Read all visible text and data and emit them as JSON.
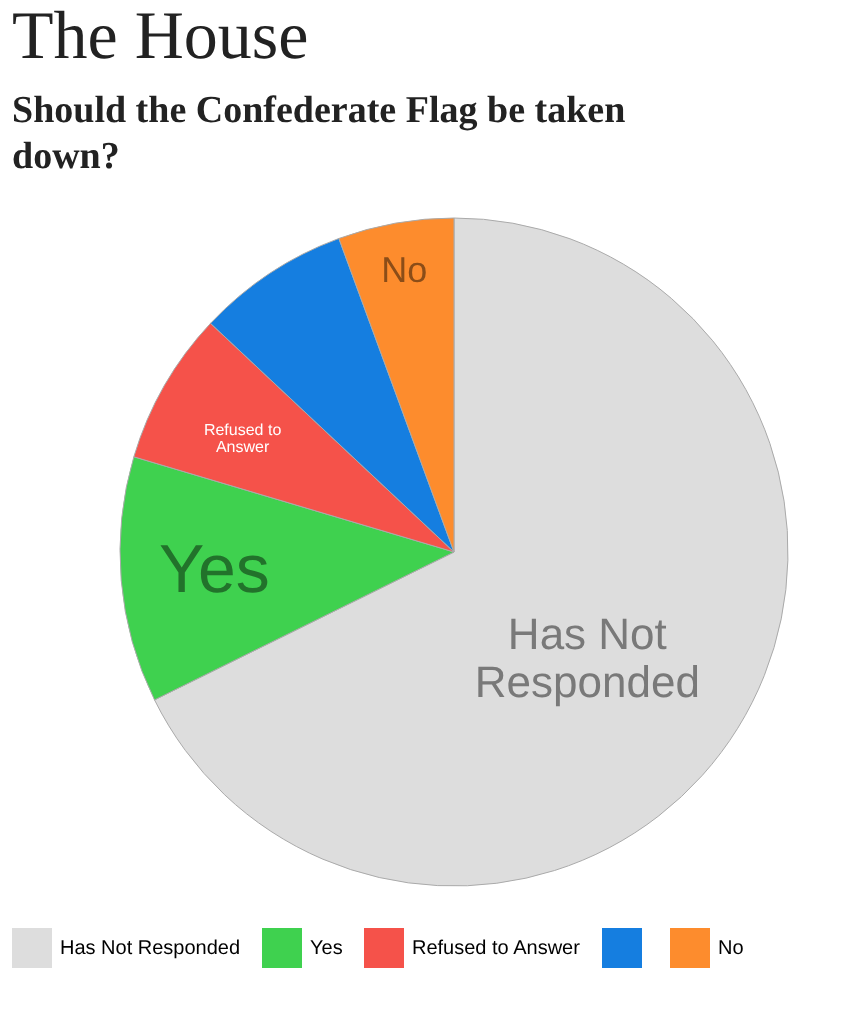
{
  "chart_data": {
    "type": "pie",
    "title": "The House",
    "subtitle": "Should the Confederate Flag be taken down?",
    "categories": [
      "Has Not Responded",
      "Yes",
      "Refused to Answer",
      null,
      "No"
    ],
    "values": [
      67.7,
      11.9,
      7.4,
      7.4,
      5.6
    ],
    "colors": [
      "#dddddd",
      "#3fd14f",
      "#f5524a",
      "#157ee0",
      "#fd8c2d"
    ],
    "legend": "bottom"
  }
}
